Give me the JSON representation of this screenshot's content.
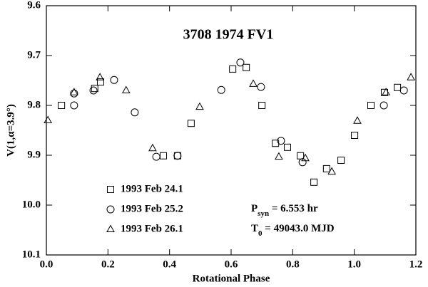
{
  "chart_data": {
    "type": "scatter",
    "title": "3708 1974 FV1",
    "xlabel": "Rotational Phase",
    "ylabel": "V(1,α=3.9°)",
    "xlim": [
      0,
      1.2
    ],
    "ylim": [
      9.6,
      10.1
    ],
    "y_inverted": true,
    "xticks": [
      {
        "value": 0,
        "label": "0.0"
      },
      0.2,
      0.4,
      0.6,
      0.8,
      {
        "value": 1,
        "label": "1.0"
      },
      1.2
    ],
    "yticks": [
      9.6,
      9.7,
      9.8,
      9.9,
      {
        "value": 10,
        "label": "10.0"
      },
      10.1
    ],
    "annotations": [
      [
        "P",
        "syn",
        " = 6.553 hr"
      ],
      [
        "T",
        "0",
        " = 49043.0 MJD"
      ]
    ],
    "series": [
      {
        "name": "1993 Feb 24.1",
        "color": "#000000",
        "marker": "square",
        "x": [
          0.049,
          0.157,
          0.176,
          0.38,
          0.426,
          0.47,
          0.605,
          0.649,
          0.7,
          0.744,
          0.783,
          0.825,
          0.869,
          0.91,
          0.957,
          1.001,
          1.054,
          1.098,
          1.14
        ],
        "values": [
          9.8,
          9.766,
          9.753,
          9.901,
          9.901,
          9.836,
          9.727,
          9.724,
          9.8,
          9.876,
          9.884,
          9.901,
          9.954,
          9.927,
          9.91,
          9.86,
          9.8,
          9.774,
          9.764
        ]
      },
      {
        "name": "1993 Feb 25.2",
        "color": "#000000",
        "marker": "circle",
        "x": [
          0.09,
          0.09,
          0.153,
          0.22,
          0.287,
          0.357,
          0.426,
          0.568,
          0.63,
          0.697,
          0.762,
          0.832,
          1.096,
          1.161
        ],
        "values": [
          9.776,
          9.8,
          9.77,
          9.749,
          9.814,
          9.903,
          9.901,
          9.769,
          9.714,
          9.763,
          9.871,
          9.914,
          9.8,
          9.77
        ]
      },
      {
        "name": "1993 Feb 26.1",
        "color": "#000000",
        "marker": "triangle",
        "x": [
          0.005,
          0.09,
          0.174,
          0.259,
          0.345,
          0.498,
          0.672,
          0.755,
          0.841,
          0.927,
          1.01,
          1.103,
          1.184
        ],
        "values": [
          9.83,
          9.774,
          9.744,
          9.77,
          9.886,
          9.803,
          9.757,
          9.903,
          9.906,
          9.933,
          9.831,
          9.774,
          9.744
        ]
      }
    ]
  }
}
